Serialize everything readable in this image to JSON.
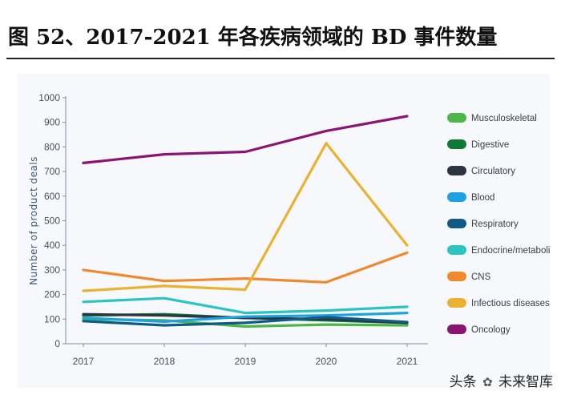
{
  "title": "图 52、2017-2021 年各疾病领域的 BD 事件数量",
  "watermark": {
    "prefix": "头条",
    "icon": "wechat-icon",
    "brand": "未来智库"
  },
  "chart_data": {
    "type": "line",
    "title": "",
    "xlabel": "",
    "ylabel": "Number of product deals",
    "categories": [
      "2017",
      "2018",
      "2019",
      "2020",
      "2021"
    ],
    "ylim": [
      0,
      1000
    ],
    "yticks": [
      0,
      100,
      200,
      300,
      400,
      500,
      600,
      700,
      800,
      900,
      1000
    ],
    "grid": false,
    "legend_position": "right",
    "series": [
      {
        "name": "Musculoskeletal",
        "color": "#4cb748",
        "values": [
          100,
          95,
          70,
          78,
          75
        ]
      },
      {
        "name": "Digestive",
        "color": "#0f7a36",
        "values": [
          115,
          120,
          105,
          95,
          85
        ]
      },
      {
        "name": "Circulatory",
        "color": "#2b3440",
        "values": [
          120,
          115,
          105,
          100,
          85
        ]
      },
      {
        "name": "Blood",
        "color": "#1da1e2",
        "values": [
          105,
          90,
          110,
          115,
          125
        ]
      },
      {
        "name": "Respiratory",
        "color": "#0f5b86",
        "values": [
          92,
          75,
          85,
          108,
          88
        ]
      },
      {
        "name": "Endocrine/metabolic",
        "color": "#2cc3c3",
        "values": [
          170,
          185,
          125,
          135,
          150
        ]
      },
      {
        "name": "CNS",
        "color": "#f0892c",
        "values": [
          300,
          255,
          265,
          250,
          370
        ]
      },
      {
        "name": "Infectious diseases",
        "color": "#eab22e",
        "values": [
          215,
          235,
          220,
          815,
          400
        ]
      },
      {
        "name": "Oncology",
        "color": "#8b1472",
        "values": [
          735,
          770,
          780,
          865,
          925
        ]
      }
    ]
  }
}
